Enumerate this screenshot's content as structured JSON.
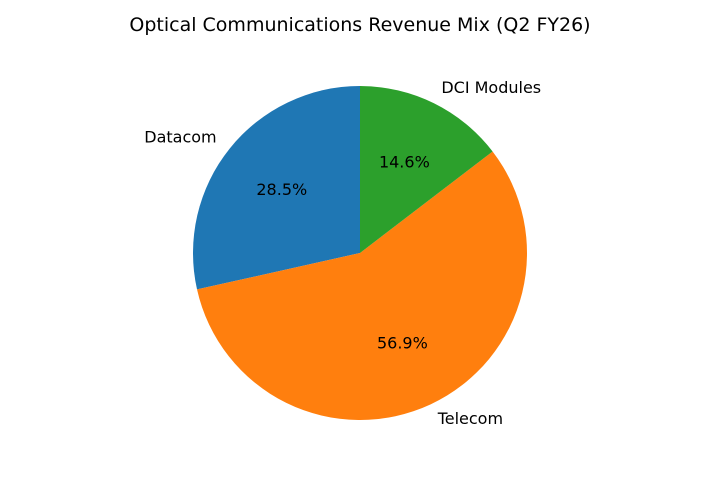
{
  "chart_data": {
    "type": "pie",
    "title": "Optical Communications Revenue Mix (Q2 FY26)",
    "categories": [
      "Datacom",
      "Telecom",
      "DCI Modules"
    ],
    "values": [
      28.5,
      56.9,
      14.6
    ],
    "value_labels": [
      "28.5%",
      "56.9%",
      "14.6%"
    ],
    "colors": [
      "#1f77b4",
      "#ff7f0e",
      "#2ca02c"
    ],
    "start_angle_deg": 90,
    "direction": "counterclockwise",
    "legend": "none"
  }
}
